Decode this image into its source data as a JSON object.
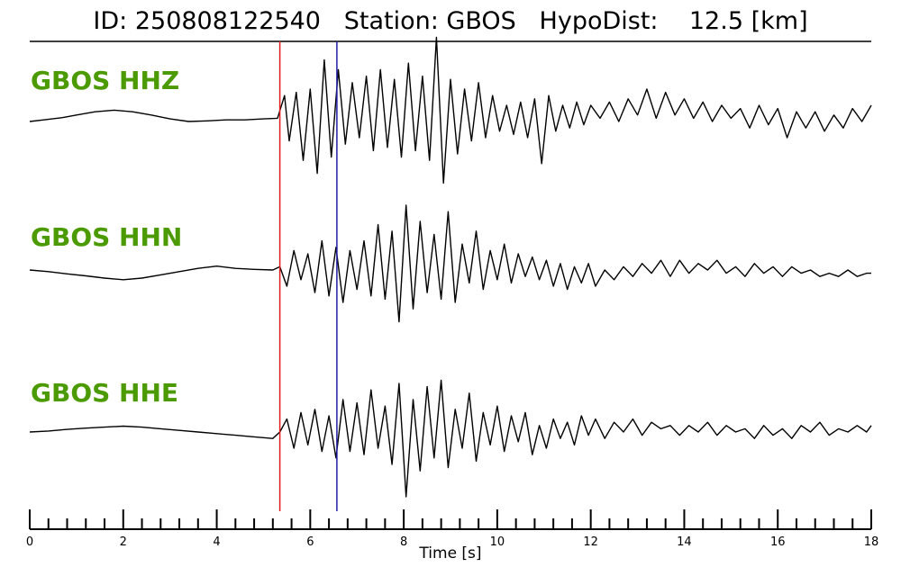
{
  "chart_data": {
    "type": "line",
    "title": {
      "id_label": "ID:",
      "id": "250808122540",
      "station_label": "Station:",
      "station": "GBOS",
      "dist_label": "HypoDist:",
      "dist_value": "12.5",
      "dist_unit": "[km]"
    },
    "xlabel": "Time [s]",
    "xlim": [
      0,
      18
    ],
    "x_ticks_major": [
      0,
      2,
      4,
      6,
      8,
      10,
      12,
      14,
      16,
      18
    ],
    "x_tick_labels": [
      "0",
      "2",
      "4",
      "6",
      "8",
      "10",
      "12",
      "14",
      "16",
      "18"
    ],
    "x_tick_minor_step": 0.4,
    "markers": [
      {
        "name": "P arrival",
        "time": 5.35,
        "color": "#e41a1c"
      },
      {
        "name": "S arrival",
        "time": 6.57,
        "color": "#1f1fa8"
      }
    ],
    "series": [
      {
        "name": "GBOS HHZ",
        "color": "#000000",
        "label_color": "#4a9a00",
        "x": [
          0.0,
          0.3,
          0.7,
          1.0,
          1.4,
          1.8,
          2.2,
          2.6,
          3.0,
          3.4,
          3.8,
          4.2,
          4.6,
          5.0,
          5.3,
          5.45,
          5.55,
          5.7,
          5.85,
          6.0,
          6.15,
          6.3,
          6.45,
          6.6,
          6.75,
          6.9,
          7.05,
          7.2,
          7.35,
          7.5,
          7.65,
          7.8,
          7.95,
          8.1,
          8.25,
          8.4,
          8.55,
          8.7,
          8.85,
          9.0,
          9.15,
          9.3,
          9.45,
          9.6,
          9.75,
          9.9,
          10.05,
          10.2,
          10.35,
          10.5,
          10.65,
          10.8,
          10.95,
          11.1,
          11.25,
          11.4,
          11.55,
          11.7,
          11.85,
          12.0,
          12.2,
          12.4,
          12.6,
          12.8,
          13.0,
          13.2,
          13.4,
          13.6,
          13.8,
          14.0,
          14.2,
          14.4,
          14.6,
          14.8,
          15.0,
          15.2,
          15.4,
          15.6,
          15.8,
          16.0,
          16.2,
          16.4,
          16.6,
          16.8,
          17.0,
          17.2,
          17.4,
          17.6,
          17.8,
          18.0
        ],
        "y": [
          0.0,
          0.05,
          0.12,
          0.2,
          0.3,
          0.35,
          0.3,
          0.2,
          0.08,
          0.0,
          0.02,
          0.05,
          0.05,
          0.08,
          0.1,
          0.8,
          -0.6,
          0.9,
          -1.2,
          1.0,
          -1.6,
          1.9,
          -1.1,
          1.6,
          -0.7,
          1.2,
          -0.5,
          1.4,
          -0.9,
          1.6,
          -0.8,
          1.3,
          -1.1,
          1.8,
          -0.9,
          1.4,
          -1.2,
          2.6,
          -1.9,
          1.3,
          -1.0,
          1.0,
          -0.6,
          1.2,
          -0.5,
          0.8,
          -0.3,
          0.5,
          -0.4,
          0.6,
          -0.5,
          0.7,
          -1.3,
          0.8,
          -0.3,
          0.5,
          -0.2,
          0.6,
          -0.1,
          0.5,
          0.1,
          0.6,
          0.0,
          0.7,
          0.2,
          1.0,
          0.1,
          0.9,
          0.2,
          0.7,
          0.1,
          0.6,
          0.0,
          0.5,
          0.1,
          0.4,
          -0.2,
          0.5,
          -0.1,
          0.4,
          -0.5,
          0.3,
          -0.2,
          0.3,
          -0.3,
          0.2,
          -0.2,
          0.4,
          0.0,
          0.5
        ]
      },
      {
        "name": "GBOS HHN",
        "color": "#000000",
        "label_color": "#4a9a00",
        "x": [
          0.0,
          0.4,
          0.8,
          1.2,
          1.6,
          2.0,
          2.4,
          2.8,
          3.2,
          3.6,
          4.0,
          4.4,
          4.8,
          5.2,
          5.35,
          5.5,
          5.65,
          5.8,
          5.95,
          6.1,
          6.25,
          6.4,
          6.55,
          6.7,
          6.85,
          7.0,
          7.15,
          7.3,
          7.45,
          7.6,
          7.75,
          7.9,
          8.05,
          8.2,
          8.35,
          8.5,
          8.65,
          8.8,
          8.95,
          9.1,
          9.25,
          9.4,
          9.55,
          9.7,
          9.85,
          10.0,
          10.15,
          10.3,
          10.45,
          10.6,
          10.75,
          10.9,
          11.05,
          11.2,
          11.35,
          11.5,
          11.65,
          11.8,
          11.95,
          12.1,
          12.3,
          12.5,
          12.7,
          12.9,
          13.1,
          13.3,
          13.5,
          13.7,
          13.9,
          14.1,
          14.3,
          14.5,
          14.7,
          14.9,
          15.1,
          15.3,
          15.5,
          15.7,
          15.9,
          16.1,
          16.3,
          16.5,
          16.7,
          16.9,
          17.1,
          17.3,
          17.5,
          17.7,
          17.9,
          18.0
        ],
        "y": [
          0.0,
          -0.05,
          -0.12,
          -0.18,
          -0.25,
          -0.3,
          -0.25,
          -0.15,
          -0.05,
          0.05,
          0.12,
          0.05,
          0.02,
          0.0,
          0.1,
          -0.5,
          0.6,
          -0.3,
          0.5,
          -0.7,
          0.9,
          -0.8,
          0.7,
          -1.0,
          0.6,
          -0.6,
          0.9,
          -0.8,
          1.4,
          -0.9,
          1.2,
          -1.6,
          2.0,
          -1.2,
          1.5,
          -0.7,
          1.1,
          -0.9,
          1.8,
          -1.0,
          0.8,
          -0.4,
          1.2,
          -0.6,
          0.6,
          -0.3,
          0.8,
          -0.4,
          0.5,
          -0.2,
          0.4,
          -0.3,
          0.3,
          -0.5,
          0.2,
          -0.6,
          0.1,
          -0.4,
          0.2,
          -0.5,
          0.0,
          -0.3,
          0.1,
          -0.2,
          0.2,
          -0.1,
          0.3,
          -0.2,
          0.3,
          -0.1,
          0.2,
          0.0,
          0.3,
          -0.1,
          0.1,
          -0.2,
          0.2,
          -0.1,
          0.1,
          -0.2,
          0.1,
          -0.1,
          0.0,
          -0.2,
          -0.1,
          -0.2,
          0.0,
          -0.2,
          -0.1,
          -0.1
        ]
      },
      {
        "name": "GBOS HHE",
        "color": "#000000",
        "label_color": "#4a9a00",
        "x": [
          0.0,
          0.4,
          0.8,
          1.2,
          1.6,
          2.0,
          2.4,
          2.8,
          3.2,
          3.6,
          4.0,
          4.4,
          4.8,
          5.2,
          5.35,
          5.5,
          5.65,
          5.8,
          5.95,
          6.1,
          6.25,
          6.4,
          6.55,
          6.7,
          6.85,
          7.0,
          7.15,
          7.3,
          7.45,
          7.6,
          7.75,
          7.9,
          8.05,
          8.2,
          8.35,
          8.5,
          8.65,
          8.8,
          8.95,
          9.1,
          9.25,
          9.4,
          9.55,
          9.7,
          9.85,
          10.0,
          10.15,
          10.3,
          10.45,
          10.6,
          10.75,
          10.9,
          11.05,
          11.2,
          11.35,
          11.5,
          11.65,
          11.8,
          11.95,
          12.1,
          12.3,
          12.5,
          12.7,
          12.9,
          13.1,
          13.3,
          13.5,
          13.7,
          13.9,
          14.1,
          14.3,
          14.5,
          14.7,
          14.9,
          15.1,
          15.3,
          15.5,
          15.7,
          15.9,
          16.1,
          16.3,
          16.5,
          16.7,
          16.9,
          17.1,
          17.3,
          17.5,
          17.7,
          17.9,
          18.0
        ],
        "y": [
          0.0,
          0.03,
          0.08,
          0.12,
          0.15,
          0.18,
          0.15,
          0.1,
          0.05,
          0.0,
          -0.05,
          -0.1,
          -0.15,
          -0.2,
          0.0,
          0.4,
          -0.5,
          0.6,
          -0.4,
          0.7,
          -0.6,
          0.5,
          -0.8,
          1.0,
          -0.6,
          0.9,
          -0.7,
          1.3,
          -0.5,
          0.8,
          -1.0,
          1.5,
          -2.0,
          1.0,
          -1.2,
          1.4,
          -0.8,
          1.6,
          -1.1,
          0.7,
          -0.5,
          1.2,
          -0.9,
          0.6,
          -0.4,
          0.8,
          -0.6,
          0.5,
          -0.3,
          0.6,
          -0.7,
          0.2,
          -0.5,
          0.4,
          -0.2,
          0.3,
          -0.4,
          0.5,
          -0.1,
          0.4,
          -0.2,
          0.3,
          0.0,
          0.4,
          -0.1,
          0.3,
          0.1,
          0.2,
          -0.1,
          0.2,
          0.0,
          0.3,
          -0.1,
          0.2,
          0.0,
          0.1,
          -0.2,
          0.2,
          -0.1,
          0.1,
          -0.2,
          0.2,
          0.0,
          0.3,
          -0.1,
          0.1,
          0.0,
          0.2,
          0.0,
          0.2
        ]
      }
    ]
  }
}
